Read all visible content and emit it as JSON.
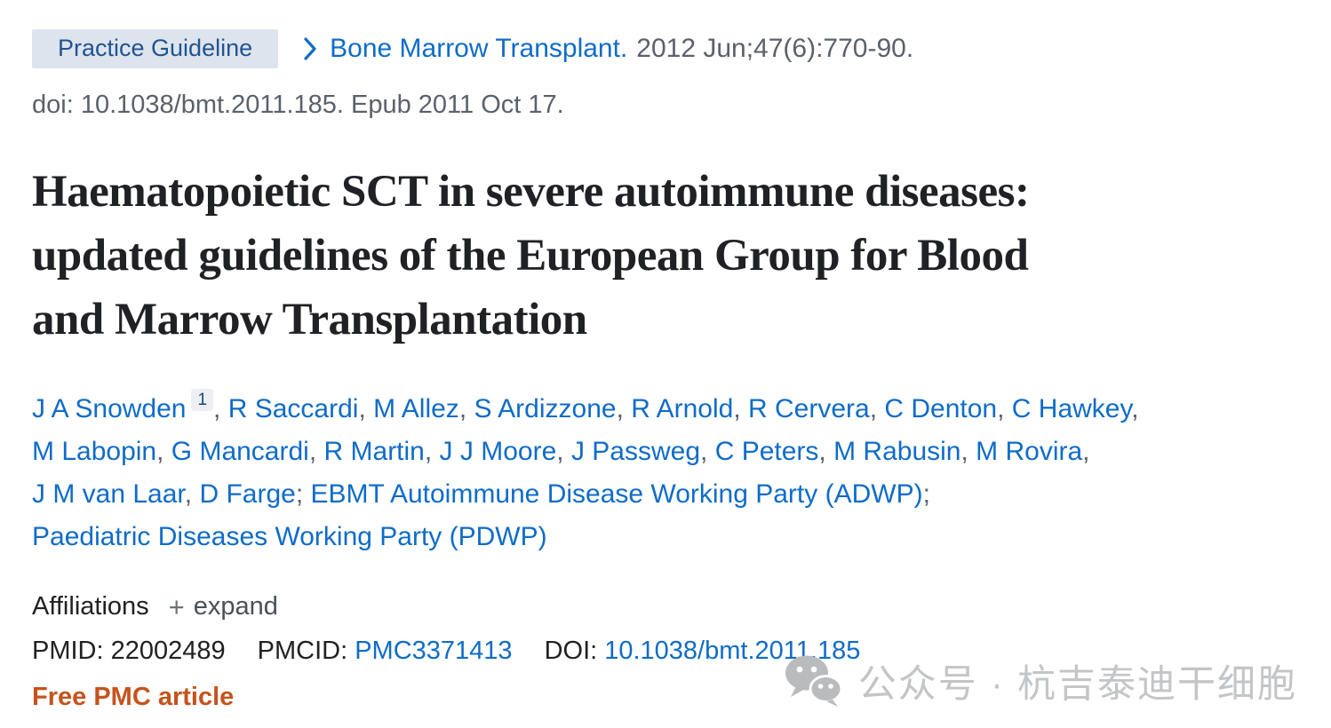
{
  "badge": {
    "label": "Practice Guideline"
  },
  "breadcrumb": {
    "journal": "Bone Marrow Transplant.",
    "citation": "2012 Jun;47(6):770-90."
  },
  "doi_line": "doi: 10.1038/bmt.2011.185. Epub 2011 Oct 17.",
  "title": "Haematopoietic SCT in severe autoimmune diseases:\nupdated guidelines of the European Group for Blood\nand Marrow Transplantation",
  "authors": {
    "lines": [
      [
        {
          "name": "J A Snowden",
          "sup": "1",
          "sep": ", "
        },
        {
          "name": "R Saccardi",
          "sep": ", "
        },
        {
          "name": "M Allez",
          "sep": ", "
        },
        {
          "name": "S Ardizzone",
          "sep": ", "
        },
        {
          "name": "R Arnold",
          "sep": ", "
        },
        {
          "name": "R Cervera",
          "sep": ", "
        },
        {
          "name": "C Denton",
          "sep": ", "
        },
        {
          "name": "C Hawkey",
          "sep": ","
        }
      ],
      [
        {
          "name": "M Labopin",
          "sep": ", "
        },
        {
          "name": "G Mancardi",
          "sep": ", "
        },
        {
          "name": "R Martin",
          "sep": ", "
        },
        {
          "name": "J J Moore",
          "sep": ", "
        },
        {
          "name": "J Passweg",
          "sep": ", "
        },
        {
          "name": "C Peters",
          "sep": ", "
        },
        {
          "name": "M Rabusin",
          "sep": ", "
        },
        {
          "name": "M Rovira",
          "sep": ","
        }
      ],
      [
        {
          "name": "J M van Laar",
          "sep": ", "
        },
        {
          "name": "D Farge",
          "sep": "; "
        },
        {
          "name": "EBMT Autoimmune Disease Working Party (ADWP)",
          "sep": ";"
        }
      ],
      [
        {
          "name": "Paediatric Diseases Working Party (PDWP)",
          "sep": ""
        }
      ]
    ]
  },
  "affiliations": {
    "label": "Affiliations",
    "expand_icon": "+",
    "expand_label": "expand"
  },
  "identifiers": {
    "items": [
      {
        "label": "PMID:",
        "value": "22002489",
        "link": false
      },
      {
        "label": "PMCID:",
        "value": "PMC3371413",
        "link": true
      },
      {
        "label": "DOI:",
        "value": "10.1038/bmt.2011.185",
        "link": true
      }
    ]
  },
  "free_pmc_label": "Free PMC article",
  "watermark": {
    "icon": "wechat-icon",
    "text": "公众号 · 杭吉泰迪干细胞"
  },
  "colors": {
    "link_blue": "#0f6cc8",
    "badge_bg": "#dee4ed",
    "badge_text": "#205493",
    "gray_text": "#5b616b",
    "dark_text": "#212121",
    "orange": "#c5531c",
    "watermark_gray": "#c3c5c7"
  }
}
